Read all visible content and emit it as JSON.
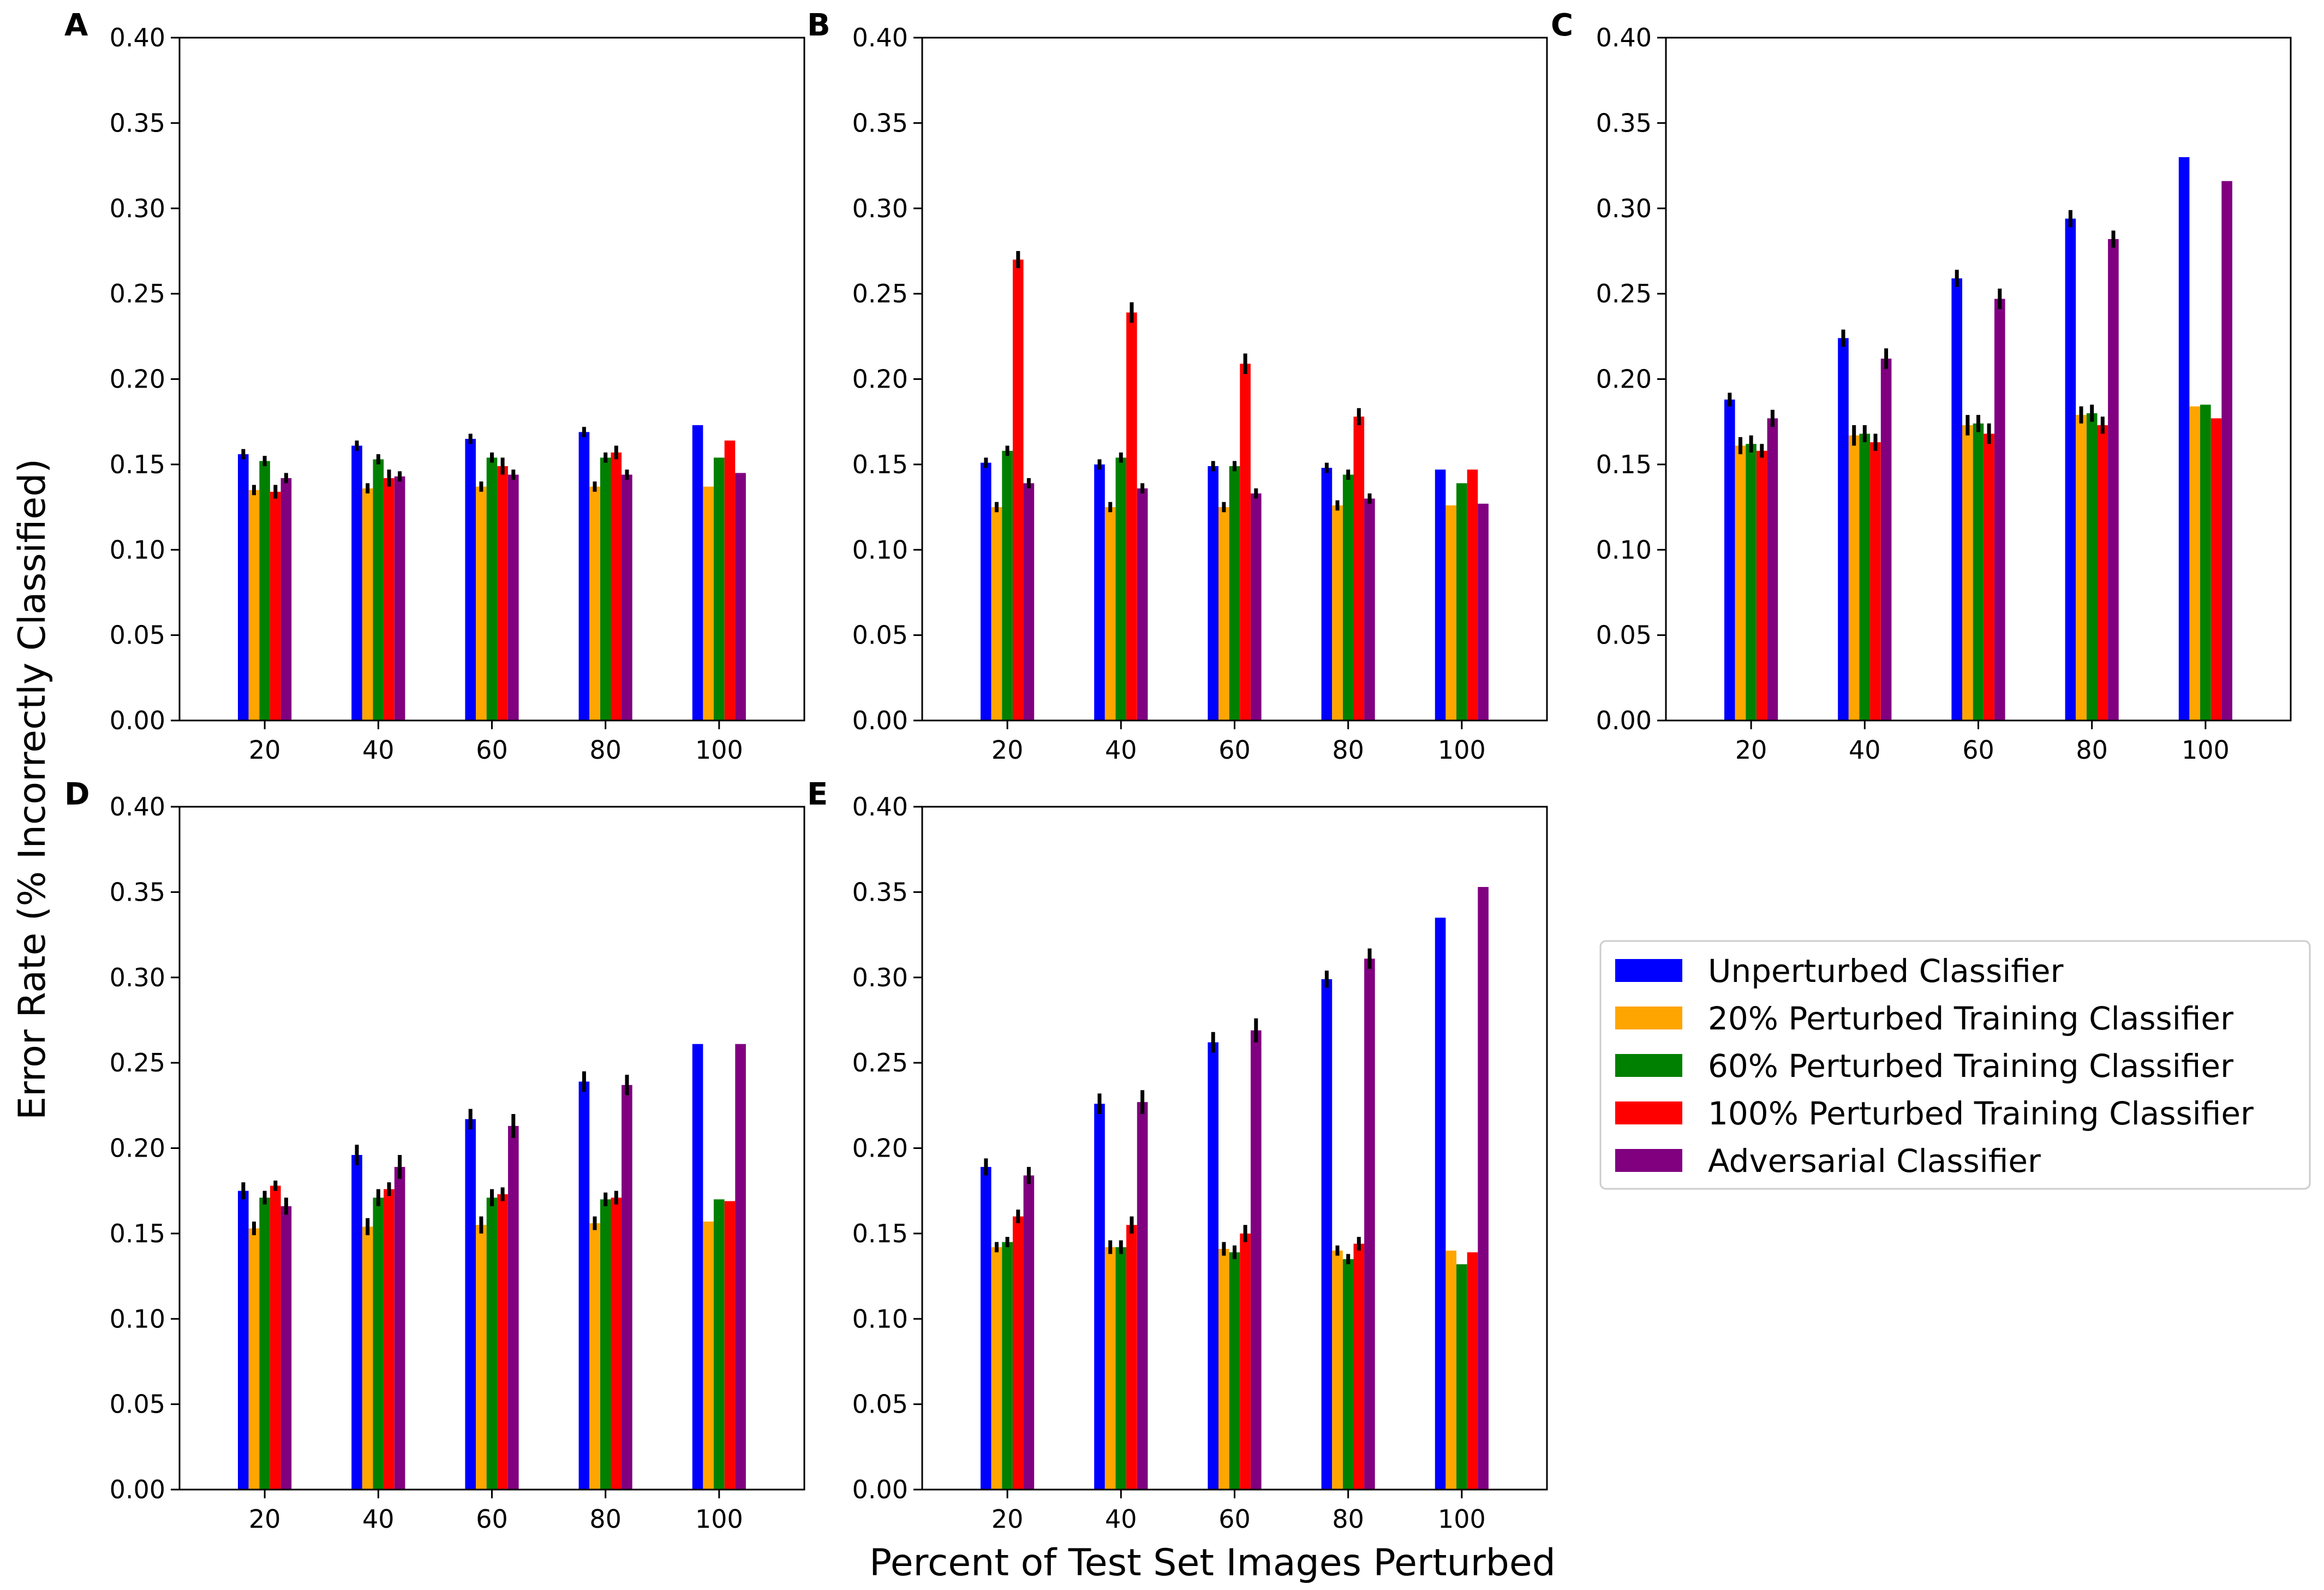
{
  "figure": {
    "ylabel": "Error Rate (% Incorrectly Classified)",
    "xlabel": "Percent of Test Set Images Perturbed"
  },
  "legend": {
    "placement": "right",
    "items": [
      {
        "label": "Unperturbed Classifier",
        "color": "#0000ff"
      },
      {
        "label": "20% Perturbed Training Classifier",
        "color": "#ffa500"
      },
      {
        "label": "60% Perturbed Training Classifier",
        "color": "#008000"
      },
      {
        "label": "100% Perturbed Training Classifier",
        "color": "#ff0000"
      },
      {
        "label": "Adversarial Classifier",
        "color": "#800080"
      }
    ]
  },
  "chart_data": [
    {
      "type": "bar",
      "panel": "A",
      "categories": [
        "20",
        "40",
        "60",
        "80",
        "100"
      ],
      "ylim": [
        0,
        0.4
      ],
      "yticks": [
        "0.00",
        "0.05",
        "0.10",
        "0.15",
        "0.20",
        "0.25",
        "0.30",
        "0.35",
        "0.40"
      ],
      "series": [
        {
          "name": "Unperturbed Classifier",
          "values": [
            0.156,
            0.161,
            0.165,
            0.169,
            0.173
          ],
          "errors": [
            0.003,
            0.003,
            0.003,
            0.003,
            0
          ]
        },
        {
          "name": "20% Perturbed Training Classifier",
          "values": [
            0.135,
            0.136,
            0.137,
            0.137,
            0.137
          ],
          "errors": [
            0.003,
            0.003,
            0.003,
            0.003,
            0
          ]
        },
        {
          "name": "60% Perturbed Training Classifier",
          "values": [
            0.152,
            0.153,
            0.154,
            0.154,
            0.154
          ],
          "errors": [
            0.003,
            0.003,
            0.003,
            0.003,
            0
          ]
        },
        {
          "name": "100% Perturbed Training Classifier",
          "values": [
            0.134,
            0.142,
            0.149,
            0.157,
            0.164
          ],
          "errors": [
            0.004,
            0.005,
            0.005,
            0.004,
            0
          ]
        },
        {
          "name": "Adversarial Classifier",
          "values": [
            0.142,
            0.143,
            0.144,
            0.144,
            0.145
          ],
          "errors": [
            0.003,
            0.003,
            0.003,
            0.003,
            0
          ]
        }
      ]
    },
    {
      "type": "bar",
      "panel": "B",
      "categories": [
        "20",
        "40",
        "60",
        "80",
        "100"
      ],
      "ylim": [
        0,
        0.4
      ],
      "yticks": [
        "0.00",
        "0.05",
        "0.10",
        "0.15",
        "0.20",
        "0.25",
        "0.30",
        "0.35",
        "0.40"
      ],
      "series": [
        {
          "name": "Unperturbed Classifier",
          "values": [
            0.151,
            0.15,
            0.149,
            0.148,
            0.147
          ],
          "errors": [
            0.003,
            0.003,
            0.003,
            0.003,
            0
          ]
        },
        {
          "name": "20% Perturbed Training Classifier",
          "values": [
            0.125,
            0.125,
            0.125,
            0.126,
            0.126
          ],
          "errors": [
            0.003,
            0.003,
            0.003,
            0.003,
            0
          ]
        },
        {
          "name": "60% Perturbed Training Classifier",
          "values": [
            0.158,
            0.154,
            0.149,
            0.144,
            0.139
          ],
          "errors": [
            0.003,
            0.003,
            0.003,
            0.003,
            0
          ]
        },
        {
          "name": "100% Perturbed Training Classifier",
          "values": [
            0.27,
            0.239,
            0.209,
            0.178,
            0.147
          ],
          "errors": [
            0.005,
            0.006,
            0.006,
            0.005,
            0
          ]
        },
        {
          "name": "Adversarial Classifier",
          "values": [
            0.139,
            0.136,
            0.133,
            0.13,
            0.127
          ],
          "errors": [
            0.003,
            0.003,
            0.003,
            0.003,
            0
          ]
        }
      ]
    },
    {
      "type": "bar",
      "panel": "C",
      "categories": [
        "20",
        "40",
        "60",
        "80",
        "100"
      ],
      "ylim": [
        0,
        0.4
      ],
      "yticks": [
        "0.00",
        "0.05",
        "0.10",
        "0.15",
        "0.20",
        "0.25",
        "0.30",
        "0.35",
        "0.40"
      ],
      "series": [
        {
          "name": "Unperturbed Classifier",
          "values": [
            0.188,
            0.224,
            0.259,
            0.294,
            0.33
          ],
          "errors": [
            0.004,
            0.005,
            0.005,
            0.005,
            0
          ]
        },
        {
          "name": "20% Perturbed Training Classifier",
          "values": [
            0.161,
            0.167,
            0.173,
            0.179,
            0.184
          ],
          "errors": [
            0.005,
            0.006,
            0.006,
            0.005,
            0
          ]
        },
        {
          "name": "60% Perturbed Training Classifier",
          "values": [
            0.162,
            0.168,
            0.174,
            0.18,
            0.185
          ],
          "errors": [
            0.005,
            0.005,
            0.005,
            0.005,
            0
          ]
        },
        {
          "name": "100% Perturbed Training Classifier",
          "values": [
            0.158,
            0.163,
            0.168,
            0.173,
            0.177
          ],
          "errors": [
            0.004,
            0.005,
            0.006,
            0.005,
            0
          ]
        },
        {
          "name": "Adversarial Classifier",
          "values": [
            0.177,
            0.212,
            0.247,
            0.282,
            0.316
          ],
          "errors": [
            0.005,
            0.006,
            0.006,
            0.005,
            0
          ]
        }
      ]
    },
    {
      "type": "bar",
      "panel": "D",
      "categories": [
        "20",
        "40",
        "60",
        "80",
        "100"
      ],
      "ylim": [
        0,
        0.4
      ],
      "yticks": [
        "0.00",
        "0.05",
        "0.10",
        "0.15",
        "0.20",
        "0.25",
        "0.30",
        "0.35",
        "0.40"
      ],
      "series": [
        {
          "name": "Unperturbed Classifier",
          "values": [
            0.175,
            0.196,
            0.217,
            0.239,
            0.261
          ],
          "errors": [
            0.005,
            0.006,
            0.006,
            0.006,
            0
          ]
        },
        {
          "name": "20% Perturbed Training Classifier",
          "values": [
            0.153,
            0.154,
            0.155,
            0.156,
            0.157
          ],
          "errors": [
            0.004,
            0.005,
            0.005,
            0.004,
            0
          ]
        },
        {
          "name": "60% Perturbed Training Classifier",
          "values": [
            0.171,
            0.171,
            0.171,
            0.17,
            0.17
          ],
          "errors": [
            0.004,
            0.005,
            0.005,
            0.004,
            0
          ]
        },
        {
          "name": "100% Perturbed Training Classifier",
          "values": [
            0.178,
            0.176,
            0.173,
            0.171,
            0.169
          ],
          "errors": [
            0.003,
            0.004,
            0.004,
            0.004,
            0
          ]
        },
        {
          "name": "Adversarial Classifier",
          "values": [
            0.166,
            0.189,
            0.213,
            0.237,
            0.261
          ],
          "errors": [
            0.005,
            0.007,
            0.007,
            0.006,
            0
          ]
        }
      ]
    },
    {
      "type": "bar",
      "panel": "E",
      "categories": [
        "20",
        "40",
        "60",
        "80",
        "100"
      ],
      "ylim": [
        0,
        0.4
      ],
      "yticks": [
        "0.00",
        "0.05",
        "0.10",
        "0.15",
        "0.20",
        "0.25",
        "0.30",
        "0.35",
        "0.40"
      ],
      "series": [
        {
          "name": "Unperturbed Classifier",
          "values": [
            0.189,
            0.226,
            0.262,
            0.299,
            0.335
          ],
          "errors": [
            0.005,
            0.006,
            0.006,
            0.005,
            0
          ]
        },
        {
          "name": "20% Perturbed Training Classifier",
          "values": [
            0.142,
            0.142,
            0.141,
            0.14,
            0.14
          ],
          "errors": [
            0.003,
            0.004,
            0.004,
            0.003,
            0
          ]
        },
        {
          "name": "60% Perturbed Training Classifier",
          "values": [
            0.145,
            0.142,
            0.139,
            0.135,
            0.132
          ],
          "errors": [
            0.003,
            0.004,
            0.004,
            0.003,
            0
          ]
        },
        {
          "name": "100% Perturbed Training Classifier",
          "values": [
            0.16,
            0.155,
            0.15,
            0.144,
            0.139
          ],
          "errors": [
            0.004,
            0.005,
            0.005,
            0.004,
            0
          ]
        },
        {
          "name": "Adversarial Classifier",
          "values": [
            0.184,
            0.227,
            0.269,
            0.311,
            0.353
          ],
          "errors": [
            0.005,
            0.007,
            0.007,
            0.006,
            0
          ]
        }
      ]
    }
  ]
}
